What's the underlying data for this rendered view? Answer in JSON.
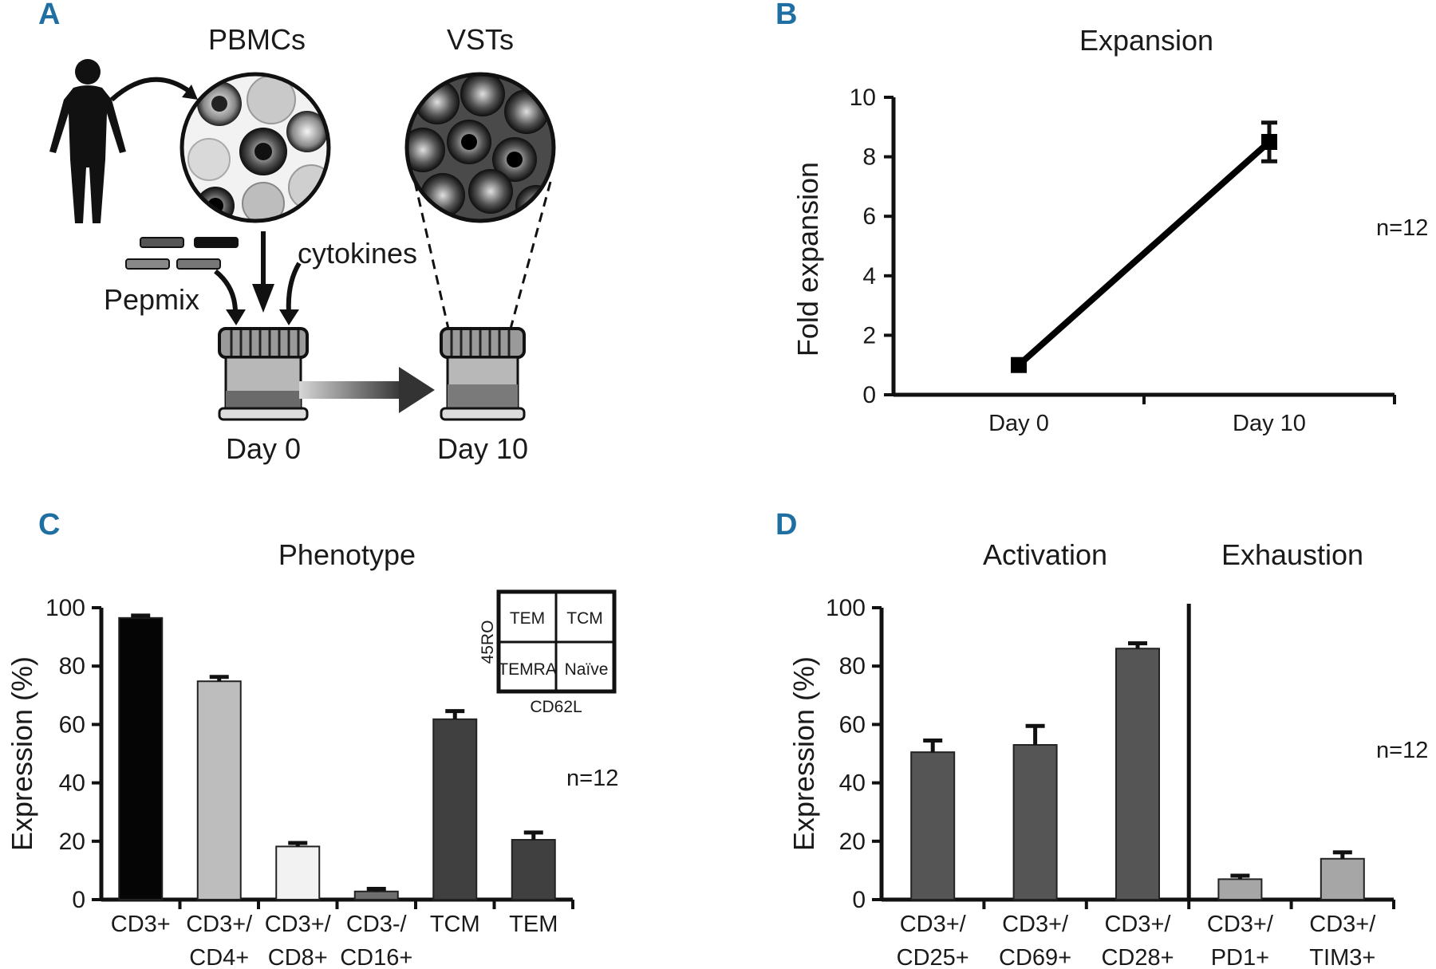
{
  "panels": {
    "A": {
      "letter": "A",
      "pbmc_label": "PBMCs",
      "vst_label": "VSTs",
      "pepmix_label": "Pepmix",
      "cytokines_label": "cytokines",
      "day0_label": "Day 0",
      "day10_label": "Day 10"
    },
    "B": {
      "letter": "B"
    },
    "C": {
      "letter": "C"
    },
    "D": {
      "letter": "D"
    }
  },
  "inset": {
    "tem": "TEM",
    "tcm": "TCM",
    "temra": "TEMRA",
    "naive": "Naïve",
    "ylabel": "45RO",
    "xlabel": "CD62L"
  },
  "chart_data": [
    {
      "id": "B",
      "type": "line",
      "title": "Expansion",
      "xlabel": "",
      "ylabel": "Fold expansion",
      "ylim": [
        0,
        10
      ],
      "yticks": [
        0,
        2,
        4,
        6,
        8,
        10
      ],
      "categories": [
        "Day 0",
        "Day 10"
      ],
      "series": [
        {
          "name": "Fold expansion",
          "values": [
            1.0,
            8.5
          ],
          "errors": [
            0.1,
            0.65
          ]
        }
      ],
      "annotation": "n=12"
    },
    {
      "id": "C",
      "type": "bar",
      "title": "Phenotype",
      "ylabel": "Expression (%)",
      "ylim": [
        0,
        100
      ],
      "yticks": [
        0,
        20,
        40,
        60,
        80,
        100
      ],
      "categories": [
        [
          "CD3+"
        ],
        [
          "CD3+/",
          "CD4+"
        ],
        [
          "CD3+/",
          "CD8+"
        ],
        [
          "CD3-/",
          "CD16+"
        ],
        [
          "TCM"
        ],
        [
          "TEM"
        ]
      ],
      "values": [
        96.5,
        74.8,
        18.2,
        2.8,
        61.8,
        20.5
      ],
      "errors": [
        0.8,
        1.5,
        1.2,
        0.9,
        2.8,
        2.5
      ],
      "colors": [
        "#050505",
        "#bdbdbd",
        "#f2f2f2",
        "#6e6e6e",
        "#404040",
        "#404040"
      ],
      "annotation": "n=12"
    },
    {
      "id": "D",
      "type": "bar",
      "title_left": "Activation",
      "title_right": "Exhaustion",
      "ylabel": "Expression (%)",
      "ylim": [
        0,
        100
      ],
      "yticks": [
        0,
        20,
        40,
        60,
        80,
        100
      ],
      "categories": [
        [
          "CD3+/",
          "CD25+"
        ],
        [
          "CD3+/",
          "CD69+"
        ],
        [
          "CD3+/",
          "CD28+"
        ],
        [
          "CD3+/",
          "PD1+"
        ],
        [
          "CD3+/",
          "TIM3+"
        ]
      ],
      "values": [
        50.5,
        53.0,
        86.0,
        7.0,
        14.0
      ],
      "errors": [
        4.0,
        6.5,
        1.8,
        1.2,
        2.2
      ],
      "colors": [
        "#555555",
        "#555555",
        "#555555",
        "#a6a6a6",
        "#a6a6a6"
      ],
      "annotation": "n=12"
    }
  ]
}
